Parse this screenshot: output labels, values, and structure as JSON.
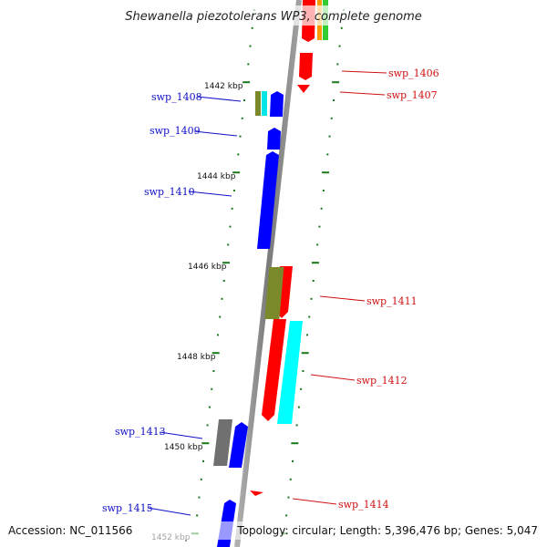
{
  "title": "Shewanella piezotolerans WP3, complete genome",
  "accession": "Accession: NC_011566",
  "topology": "Topology: circular; Length: 5,396,476 bp; Genes: 5,047",
  "kbp_labels": [
    "1442 kbp",
    "1444 kbp",
    "1446 kbp",
    "1448 kbp",
    "1450 kbp",
    "1452 kbp"
  ],
  "genes_left": [
    {
      "label": "swp_1408"
    },
    {
      "label": "swp_1409"
    },
    {
      "label": "swp_1410"
    },
    {
      "label": "swp_1413"
    },
    {
      "label": "swp_1415"
    }
  ],
  "genes_right": [
    {
      "label": "swp_1406"
    },
    {
      "label": "swp_1407"
    },
    {
      "label": "swp_1411"
    },
    {
      "label": "swp_1412"
    },
    {
      "label": "swp_1414"
    }
  ],
  "colors": {
    "forward": "#0000ff",
    "reverse": "#ff0000",
    "olive": "#7a8a2a",
    "cyan": "#00ffff",
    "gray": "#707070",
    "orange": "#ff9900",
    "green": "#33cc33",
    "backbone": "#8a8a8a",
    "tick": "#1a7a1a"
  }
}
